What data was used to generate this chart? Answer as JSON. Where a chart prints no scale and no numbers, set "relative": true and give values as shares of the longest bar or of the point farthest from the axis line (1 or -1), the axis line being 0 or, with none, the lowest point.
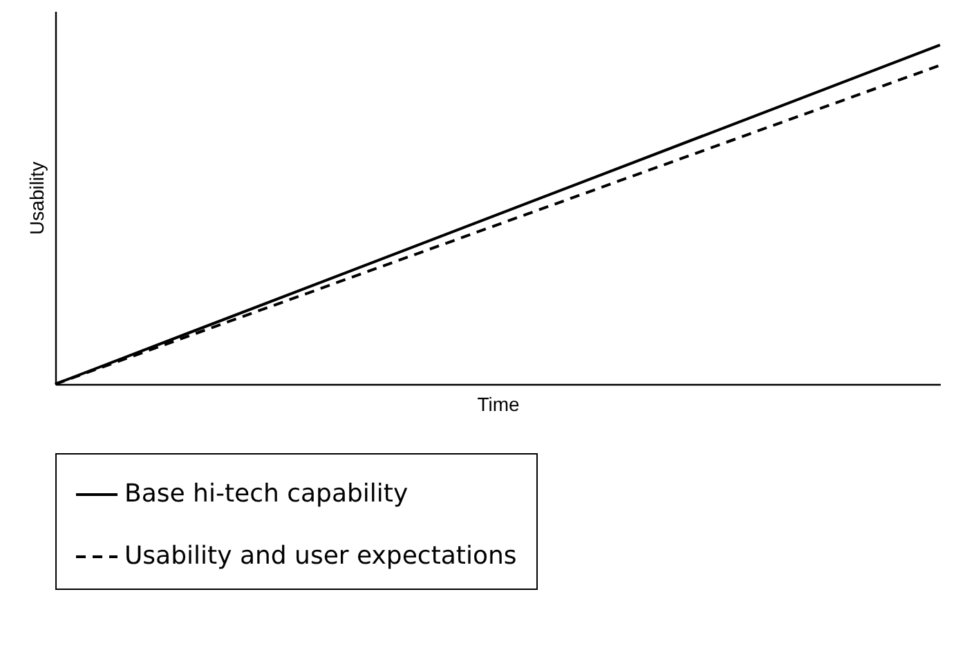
{
  "chart_data": {
    "type": "line",
    "xlabel": "Time",
    "ylabel": "Usability",
    "relative": true,
    "categories": [
      null,
      null
    ],
    "legend": "bottom",
    "grid": false,
    "marker": "none",
    "series": [
      {
        "name": "Base hi-tech capability",
        "color": "#000000",
        "line_style": "solid",
        "values": [
          0,
          1
        ]
      },
      {
        "name": "Usability and user expectations",
        "color": "#000000",
        "line_style": "dashed",
        "values": [
          0,
          0.94
        ]
      }
    ]
  }
}
